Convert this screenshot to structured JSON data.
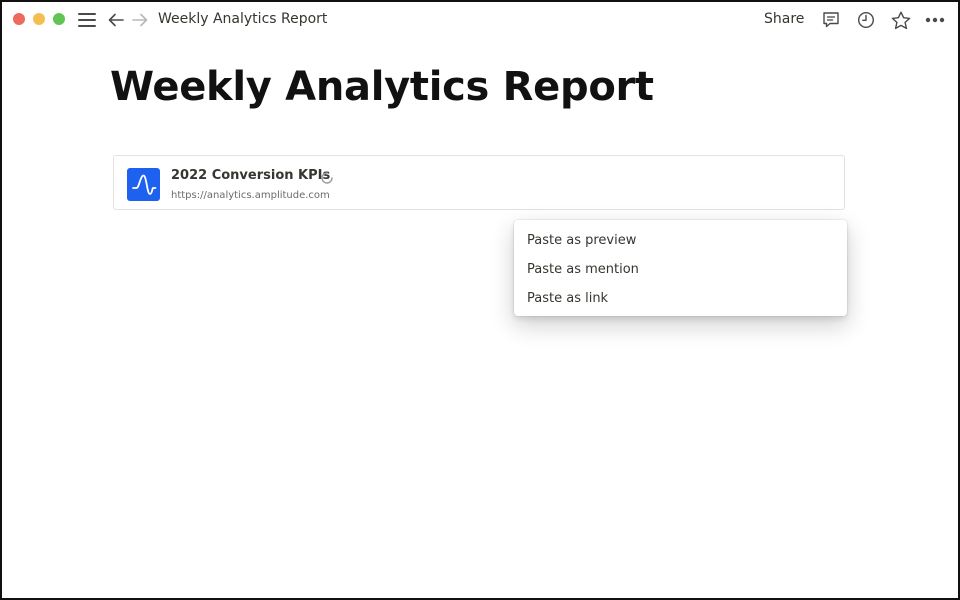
{
  "window": {
    "controls": [
      "close",
      "minimize",
      "zoom"
    ]
  },
  "topbar": {
    "menu_icon": "hamburger-icon",
    "back_icon": "arrow-left-icon",
    "forward_icon": "arrow-right-icon",
    "breadcrumb_title": "Weekly Analytics Report",
    "share_label": "Share",
    "comment_icon": "comment-icon",
    "history_icon": "clock-icon",
    "favorite_icon": "star-icon",
    "more_icon": "more-horizontal-icon"
  },
  "page": {
    "title": "Weekly Analytics Report"
  },
  "bookmark": {
    "title": "2022 Conversion KPIs",
    "url": "https://analytics.amplitude.com",
    "logo_icon": "amplitude-logo-icon",
    "logo_color": "#1e61f0",
    "status_icon": "loading-spinner-icon"
  },
  "paste_menu": {
    "items": [
      {
        "label": "Paste as preview"
      },
      {
        "label": "Paste as mention"
      },
      {
        "label": "Paste as link"
      }
    ]
  },
  "colors": {
    "text": "#37352f",
    "title": "#111111",
    "traffic_red": "#ed6a5e",
    "traffic_yellow": "#f5bf4f",
    "traffic_green": "#61c454"
  }
}
